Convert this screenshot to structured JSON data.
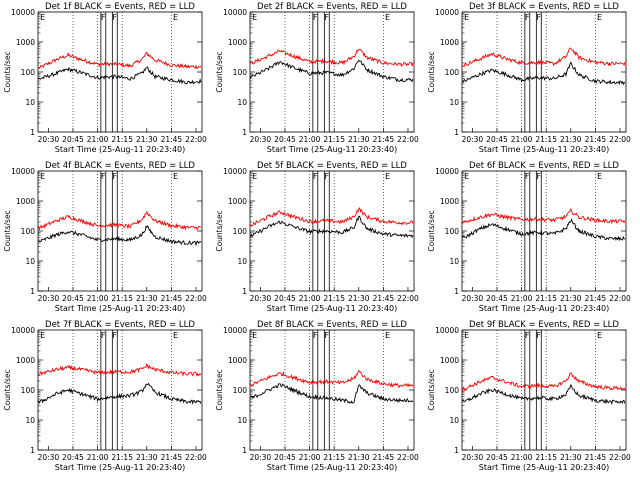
{
  "figure": {
    "xlabel": "Start Time (25-Aug-11 20:23:40)",
    "ylabel": "Counts/sec",
    "x_tick_labels": [
      "20:30",
      "20:45",
      "21:00",
      "21:15",
      "21:30",
      "21:45",
      "22:00"
    ],
    "y_tick_labels": [
      "1",
      "10",
      "100",
      "1000",
      "10000"
    ],
    "colors": {
      "events": "#000000",
      "lld": "#ff0000",
      "background": "#ffffff"
    }
  },
  "chart_data": [
    {
      "type": "line",
      "title": "Det 1f BLACK = Events, RED = LLD",
      "xlabel": "Start Time (25-Aug-11 20:23:40)",
      "ylabel": "Counts/sec",
      "x_range": [
        "20:23:40",
        "22:03:40"
      ],
      "ylim": [
        1,
        10000
      ],
      "y_scale": "log",
      "grid": "vertical dotted at 20:45, 21:00, 21:15, 21:45",
      "series": [
        {
          "name": "Events",
          "color": "#000000",
          "x": [
            "20:25",
            "20:35",
            "20:42",
            "20:50",
            "21:00",
            "21:10",
            "21:20",
            "21:27",
            "21:30",
            "21:35",
            "21:45",
            "21:55",
            "22:03"
          ],
          "values": [
            60,
            90,
            125,
            95,
            65,
            70,
            60,
            90,
            140,
            70,
            55,
            45,
            50
          ]
        },
        {
          "name": "LLD",
          "color": "#ff0000",
          "x": [
            "20:25",
            "20:35",
            "20:42",
            "20:50",
            "21:00",
            "21:10",
            "21:20",
            "21:27",
            "21:30",
            "21:35",
            "21:45",
            "21:55",
            "22:03"
          ],
          "values": [
            140,
            260,
            360,
            260,
            180,
            185,
            160,
            260,
            420,
            250,
            170,
            150,
            150
          ]
        }
      ]
    },
    {
      "type": "line",
      "title": "Det 2f BLACK = Events, RED = LLD",
      "xlabel": "Start Time (25-Aug-11 20:23:40)",
      "ylabel": "Counts/sec",
      "x_range": [
        "20:23:40",
        "22:03:40"
      ],
      "ylim": [
        1,
        10000
      ],
      "y_scale": "log",
      "grid": "vertical dotted at 20:45, 21:00, 21:15, 21:45",
      "series": [
        {
          "name": "Events",
          "color": "#000000",
          "x": [
            "20:25",
            "20:35",
            "20:42",
            "20:50",
            "21:00",
            "21:10",
            "21:20",
            "21:27",
            "21:30",
            "21:35",
            "21:45",
            "21:55",
            "22:03"
          ],
          "values": [
            70,
            130,
            220,
            140,
            90,
            95,
            80,
            130,
            260,
            120,
            70,
            55,
            55
          ]
        },
        {
          "name": "LLD",
          "color": "#ff0000",
          "x": [
            "20:25",
            "20:35",
            "20:42",
            "20:50",
            "21:00",
            "21:10",
            "21:20",
            "21:27",
            "21:30",
            "21:35",
            "21:45",
            "21:55",
            "22:03"
          ],
          "values": [
            200,
            340,
            500,
            340,
            220,
            230,
            200,
            330,
            600,
            300,
            200,
            180,
            180
          ]
        }
      ]
    },
    {
      "type": "line",
      "title": "Det 3f BLACK = Events, RED = LLD",
      "xlabel": "Start Time (25-Aug-11 20:23:40)",
      "ylabel": "Counts/sec",
      "x_range": [
        "20:23:40",
        "22:03:40"
      ],
      "ylim": [
        1,
        10000
      ],
      "y_scale": "log",
      "grid": "vertical dotted at 20:45, 21:00, 21:15, 21:45",
      "series": [
        {
          "name": "Events",
          "color": "#000000",
          "x": [
            "20:25",
            "20:35",
            "20:42",
            "20:50",
            "21:00",
            "21:10",
            "21:20",
            "21:27",
            "21:30",
            "21:35",
            "21:45",
            "21:55",
            "22:03"
          ],
          "values": [
            50,
            85,
            115,
            85,
            55,
            65,
            60,
            85,
            190,
            80,
            50,
            45,
            45
          ]
        },
        {
          "name": "LLD",
          "color": "#ff0000",
          "x": [
            "20:25",
            "20:35",
            "20:42",
            "20:50",
            "21:00",
            "21:10",
            "21:20",
            "21:27",
            "21:30",
            "21:35",
            "21:45",
            "21:55",
            "22:03"
          ],
          "values": [
            170,
            280,
            400,
            280,
            200,
            210,
            190,
            320,
            640,
            300,
            210,
            190,
            190
          ]
        }
      ]
    },
    {
      "type": "line",
      "title": "Det 4f BLACK = Events, RED = LLD",
      "xlabel": "Start Time (25-Aug-11 20:23:40)",
      "ylabel": "Counts/sec",
      "x_range": [
        "20:23:40",
        "22:03:40"
      ],
      "ylim": [
        1,
        10000
      ],
      "y_scale": "log",
      "grid": "vertical dotted at 20:45, 21:00, 21:15, 21:45",
      "series": [
        {
          "name": "Events",
          "color": "#000000",
          "x": [
            "20:25",
            "20:35",
            "20:42",
            "20:50",
            "21:00",
            "21:10",
            "21:20",
            "21:27",
            "21:30",
            "21:35",
            "21:45",
            "21:55",
            "22:03"
          ],
          "values": [
            45,
            75,
            95,
            75,
            50,
            55,
            50,
            75,
            140,
            65,
            45,
            40,
            40
          ]
        },
        {
          "name": "LLD",
          "color": "#ff0000",
          "x": [
            "20:25",
            "20:35",
            "20:42",
            "20:50",
            "21:00",
            "21:10",
            "21:20",
            "21:27",
            "21:30",
            "21:35",
            "21:45",
            "21:55",
            "22:03"
          ],
          "values": [
            130,
            220,
            300,
            220,
            150,
            160,
            140,
            240,
            420,
            220,
            150,
            130,
            130
          ]
        }
      ]
    },
    {
      "type": "line",
      "title": "Det 5f BLACK = Events, RED = LLD",
      "xlabel": "Start Time (25-Aug-11 20:23:40)",
      "ylabel": "Counts/sec",
      "x_range": [
        "20:23:40",
        "22:03:40"
      ],
      "ylim": [
        1,
        10000
      ],
      "y_scale": "log",
      "grid": "vertical dotted at 20:45, 21:00, 21:15, 21:45",
      "series": [
        {
          "name": "Events",
          "color": "#000000",
          "x": [
            "20:25",
            "20:35",
            "20:42",
            "20:50",
            "21:00",
            "21:10",
            "21:20",
            "21:27",
            "21:30",
            "21:35",
            "21:45",
            "21:55",
            "22:03"
          ],
          "values": [
            70,
            140,
            200,
            140,
            95,
            100,
            90,
            130,
            300,
            120,
            80,
            70,
            70
          ]
        },
        {
          "name": "LLD",
          "color": "#ff0000",
          "x": [
            "20:25",
            "20:35",
            "20:42",
            "20:50",
            "21:00",
            "21:10",
            "21:20",
            "21:27",
            "21:30",
            "21:35",
            "21:45",
            "21:55",
            "22:03"
          ],
          "values": [
            160,
            300,
            430,
            300,
            210,
            220,
            200,
            300,
            560,
            290,
            210,
            190,
            190
          ]
        }
      ]
    },
    {
      "type": "line",
      "title": "Det 6f BLACK = Events, RED = LLD",
      "xlabel": "Start Time (25-Aug-11 20:23:40)",
      "ylabel": "Counts/sec",
      "x_range": [
        "20:23:40",
        "22:03:40"
      ],
      "ylim": [
        1,
        10000
      ],
      "y_scale": "log",
      "grid": "vertical dotted at 20:45, 21:00, 21:15, 21:45",
      "series": [
        {
          "name": "Events",
          "color": "#000000",
          "x": [
            "20:25",
            "20:35",
            "20:42",
            "20:50",
            "21:00",
            "21:10",
            "21:20",
            "21:27",
            "21:30",
            "21:35",
            "21:45",
            "21:55",
            "22:03"
          ],
          "values": [
            60,
            120,
            165,
            120,
            80,
            90,
            80,
            120,
            230,
            100,
            65,
            55,
            55
          ]
        },
        {
          "name": "LLD",
          "color": "#ff0000",
          "x": [
            "20:25",
            "20:35",
            "20:42",
            "20:50",
            "21:00",
            "21:10",
            "21:20",
            "21:27",
            "21:30",
            "21:35",
            "21:45",
            "21:55",
            "22:03"
          ],
          "values": [
            200,
            290,
            360,
            290,
            240,
            250,
            230,
            300,
            470,
            290,
            230,
            210,
            210
          ]
        }
      ]
    },
    {
      "type": "line",
      "title": "Det 7f BLACK = Events, RED = LLD",
      "xlabel": "Start Time (25-Aug-11 20:23:40)",
      "ylabel": "Counts/sec",
      "x_range": [
        "20:23:40",
        "22:03:40"
      ],
      "ylim": [
        1,
        10000
      ],
      "y_scale": "log",
      "grid": "vertical dotted at 20:45, 21:00, 21:15, 21:45",
      "series": [
        {
          "name": "Events",
          "color": "#000000",
          "x": [
            "20:25",
            "20:35",
            "20:42",
            "20:50",
            "21:00",
            "21:10",
            "21:20",
            "21:27",
            "21:30",
            "21:35",
            "21:45",
            "21:55",
            "22:03"
          ],
          "values": [
            40,
            75,
            100,
            75,
            50,
            60,
            65,
            90,
            165,
            85,
            50,
            40,
            40
          ]
        },
        {
          "name": "LLD",
          "color": "#ff0000",
          "x": [
            "20:25",
            "20:35",
            "20:42",
            "20:50",
            "21:00",
            "21:10",
            "21:20",
            "21:27",
            "21:30",
            "21:35",
            "21:45",
            "21:55",
            "22:03"
          ],
          "values": [
            350,
            480,
            560,
            480,
            380,
            400,
            400,
            500,
            650,
            480,
            380,
            340,
            340
          ]
        }
      ]
    },
    {
      "type": "line",
      "title": "Det 8f BLACK = Events, RED = LLD",
      "xlabel": "Start Time (25-Aug-11 20:23:40)",
      "ylabel": "Counts/sec",
      "x_range": [
        "20:23:40",
        "22:03:40"
      ],
      "ylim": [
        1,
        10000
      ],
      "y_scale": "log",
      "grid": "vertical dotted at 20:45, 21:00, 21:15, 21:45",
      "series": [
        {
          "name": "Events",
          "color": "#000000",
          "x": [
            "20:25",
            "20:35",
            "20:42",
            "20:50",
            "21:00",
            "21:10",
            "21:20",
            "21:27",
            "21:30",
            "21:35",
            "21:45",
            "21:55",
            "22:03"
          ],
          "values": [
            55,
            100,
            150,
            100,
            60,
            55,
            45,
            40,
            140,
            80,
            50,
            45,
            45
          ]
        },
        {
          "name": "LLD",
          "color": "#ff0000",
          "x": [
            "20:25",
            "20:35",
            "20:42",
            "20:50",
            "21:00",
            "21:10",
            "21:20",
            "21:27",
            "21:30",
            "21:35",
            "21:45",
            "21:55",
            "22:03"
          ],
          "values": [
            150,
            260,
            360,
            260,
            180,
            190,
            170,
            240,
            420,
            230,
            160,
            140,
            140
          ]
        }
      ]
    },
    {
      "type": "line",
      "title": "Det 9f BLACK = Events, RED = LLD",
      "xlabel": "Start Time (25-Aug-11 20:23:40)",
      "ylabel": "Counts/sec",
      "x_range": [
        "20:23:40",
        "22:03:40"
      ],
      "ylim": [
        1,
        10000
      ],
      "y_scale": "log",
      "grid": "vertical dotted at 20:45, 21:00, 21:15, 21:45",
      "series": [
        {
          "name": "Events",
          "color": "#000000",
          "x": [
            "20:25",
            "20:35",
            "20:42",
            "20:50",
            "21:00",
            "21:10",
            "21:20",
            "21:27",
            "21:30",
            "21:35",
            "21:45",
            "21:55",
            "22:03"
          ],
          "values": [
            40,
            75,
            100,
            75,
            50,
            55,
            50,
            70,
            130,
            65,
            45,
            40,
            40
          ]
        },
        {
          "name": "LLD",
          "color": "#ff0000",
          "x": [
            "20:25",
            "20:35",
            "20:42",
            "20:50",
            "21:00",
            "21:10",
            "21:20",
            "21:27",
            "21:30",
            "21:35",
            "21:45",
            "21:55",
            "22:03"
          ],
          "values": [
            110,
            190,
            260,
            190,
            130,
            140,
            130,
            200,
            360,
            190,
            130,
            115,
            115
          ]
        }
      ]
    }
  ]
}
